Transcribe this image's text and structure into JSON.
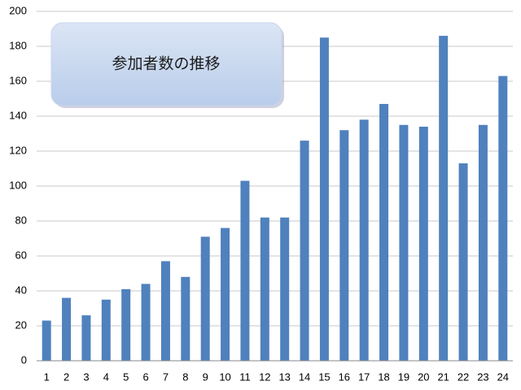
{
  "chart_data": {
    "type": "bar",
    "title": "参加者数の推移",
    "categories": [
      "1",
      "2",
      "3",
      "4",
      "5",
      "6",
      "7",
      "8",
      "9",
      "10",
      "11",
      "12",
      "13",
      "14",
      "15",
      "16",
      "17",
      "18",
      "19",
      "20",
      "21",
      "22",
      "23",
      "24"
    ],
    "values": [
      23,
      36,
      26,
      35,
      41,
      44,
      57,
      48,
      71,
      76,
      103,
      82,
      82,
      126,
      185,
      132,
      138,
      147,
      135,
      134,
      186,
      113,
      135,
      163
    ],
    "color": "#4f81bd",
    "ylim": [
      0,
      200
    ],
    "yticks": [
      0,
      20,
      40,
      60,
      80,
      100,
      120,
      140,
      160,
      180,
      200
    ],
    "grid": true
  }
}
